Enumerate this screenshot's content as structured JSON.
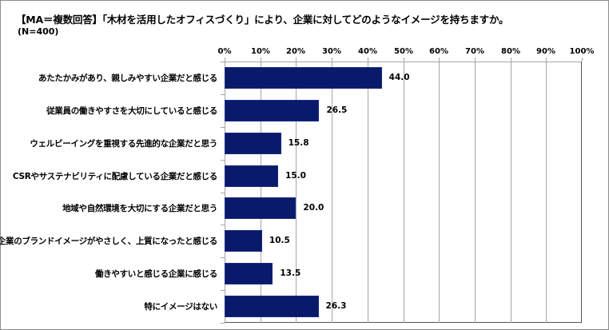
{
  "chart_data": {
    "type": "bar",
    "orientation": "horizontal",
    "title": "【MA＝複数回答】「木材を活用したオフィスづくり」により、企業に対してどのようなイメージを持ちますか。",
    "subtitle": "(N=400)",
    "xlabel": "",
    "ylabel": "",
    "xlim": [
      0,
      100
    ],
    "x_ticks": [
      "0%",
      "10%",
      "20%",
      "30%",
      "40%",
      "50%",
      "60%",
      "70%",
      "80%",
      "90%",
      "100%"
    ],
    "grid": true,
    "legend": null,
    "bar_color": "#0a1a6a",
    "categories": [
      "あたたかみがあり、親しみやすい企業だと感じる",
      "従業員の働きやすさを大切にしていると感じる",
      "ウェルビーイングを重視する先進的な企業だと思う",
      "CSRやサステナビリティに配慮している企業だと感じる",
      "地域や自然環境を大切にする企業だと思う",
      "企業のブランドイメージがやさしく、上質になったと感じる",
      "働きやすいと感じる企業に感じる",
      "特にイメージはない"
    ],
    "values": [
      44.0,
      26.5,
      15.8,
      15.0,
      20.0,
      10.5,
      13.5,
      26.3
    ],
    "value_labels": [
      "44.0",
      "26.5",
      "15.8",
      "15.0",
      "20.0",
      "10.5",
      "13.5",
      "26.3"
    ]
  }
}
